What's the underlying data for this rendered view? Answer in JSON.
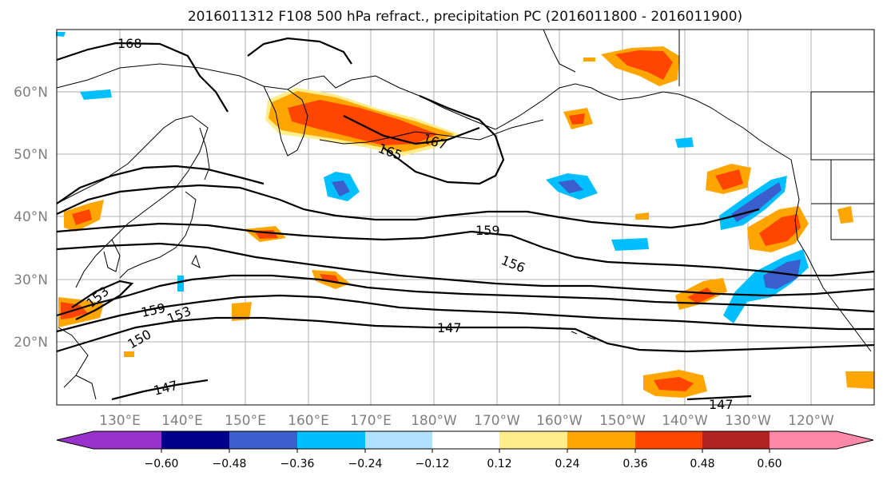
{
  "title": "2016011312 F108 500 hPa refract., precipitation PC (2016011800 - 2016011900)",
  "lat_labels": [
    "60°N",
    "50°N",
    "40°N",
    "30°N",
    "20°N"
  ],
  "lon_labels": [
    "130°E",
    "140°E",
    "150°E",
    "160°E",
    "170°E",
    "180°W",
    "170°W",
    "160°W",
    "150°W",
    "140°W",
    "130°W",
    "120°W"
  ],
  "contour_labels": [
    "168",
    "167",
    "165",
    "159",
    "156",
    "153",
    "159",
    "153",
    "150",
    "147",
    "147",
    "147"
  ],
  "colorbar": {
    "ticks": [
      "−0.60",
      "−0.48",
      "−0.36",
      "−0.24",
      "−0.12",
      "0.12",
      "0.24",
      "0.36",
      "0.48",
      "0.60"
    ],
    "colors": [
      "#9932cc",
      "#00008b",
      "#3a5fcd",
      "#00bfff",
      "#b0e2ff",
      "#ffffff",
      "#ffec8b",
      "#ffa500",
      "#ff4500",
      "#b22222",
      "#ff88aa"
    ]
  }
}
